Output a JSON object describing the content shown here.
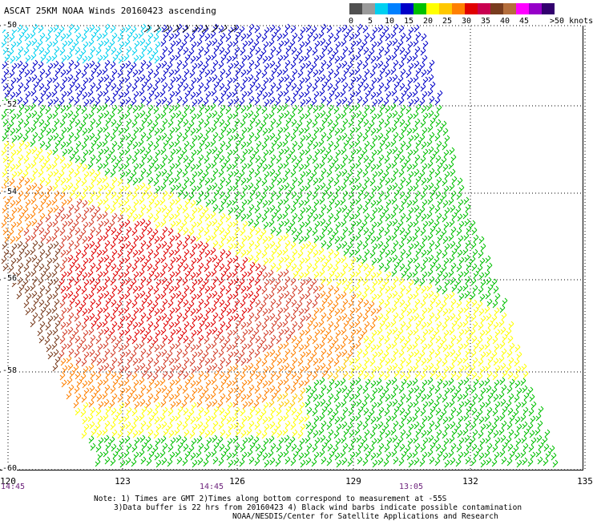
{
  "title": "ASCAT 25KM NOAA Winds 20160423 ascending",
  "legend": {
    "colors": [
      "#505050",
      "#9a9a9a",
      "#00d0f0",
      "#0080ff",
      "#0000c8",
      "#00c000",
      "#ffff00",
      "#ffc800",
      "#ff8000",
      "#e00000",
      "#c80050",
      "#783c1e",
      "#b46e3c",
      "#ff00ff",
      "#9600c8",
      "#32006e"
    ],
    "labels": [
      "0",
      "5",
      "10",
      "15",
      "20",
      "25",
      "30",
      "35",
      "40",
      "45",
      ">50 knots"
    ]
  },
  "axes": {
    "lat_labels": [
      "-50",
      "-52",
      "-54",
      "-56",
      "-58",
      "-60"
    ],
    "lon_labels": [
      "120",
      "123",
      "126",
      "129",
      "132",
      "135"
    ]
  },
  "times": [
    "14:45",
    "14:45",
    "13:05"
  ],
  "notes": [
    "Note: 1) Times are GMT 2)Times along bottom correspond to measurement at -55S",
    "3)Data buffer is 22 hrs from 20160423 4) Black wind barbs indicate possible contamination",
    "NOAA/NESDIS/Center for Satellite Applications and Research"
  ],
  "map": {
    "lat_range": [
      -50,
      -60
    ],
    "lon_range": [
      120,
      135
    ],
    "grid": "dotted",
    "barb_speed_bands_knots": [
      {
        "region": "north-west",
        "speed": "10-20",
        "color": "#00d0f0"
      },
      {
        "region": "north",
        "speed": "15-20",
        "color": "#0000c8"
      },
      {
        "region": "north-central",
        "speed": "20-25",
        "color": "#00c000"
      },
      {
        "region": "central band",
        "speed": "25-30",
        "color": "#ffff00"
      },
      {
        "region": "west-central",
        "speed": "35-40",
        "color": "#ff8000"
      },
      {
        "region": "core",
        "speed": "40-45",
        "color": "#e00000"
      },
      {
        "region": "south-west edge",
        "speed": "45-50",
        "color": "#783c1e"
      },
      {
        "region": "south",
        "speed": "20-25",
        "color": "#00c000"
      }
    ]
  }
}
